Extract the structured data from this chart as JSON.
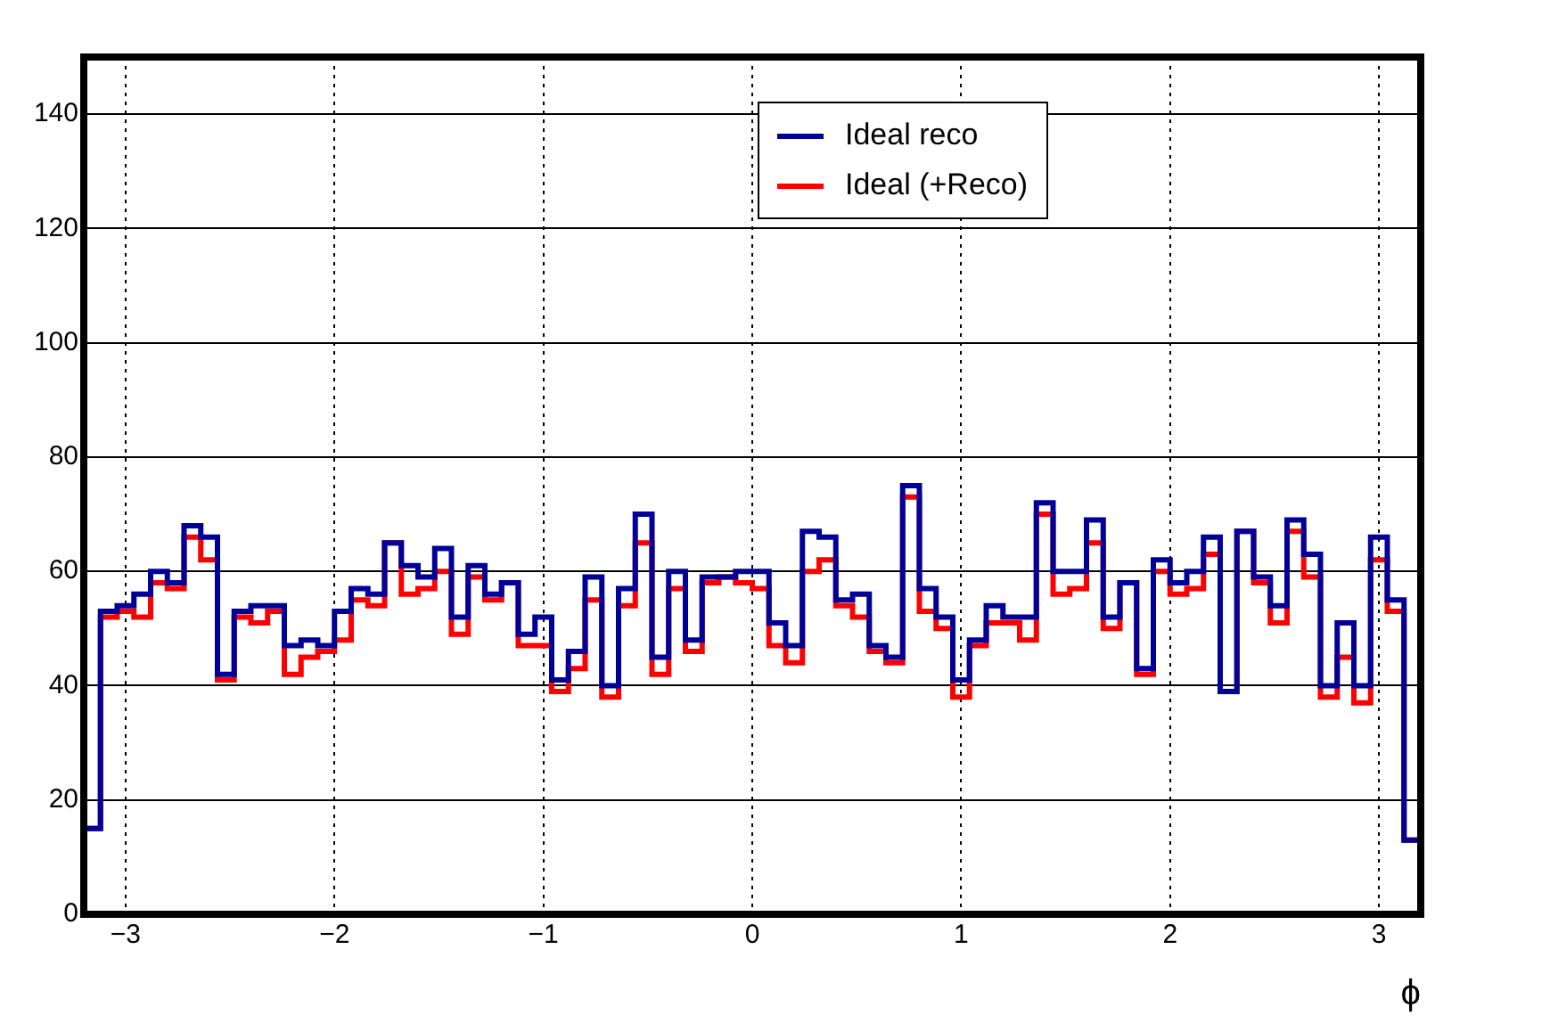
{
  "chart_data": {
    "type": "histogram",
    "xlabel": "ϕ",
    "bins": [
      -3.2,
      -3.12,
      -3.04,
      -2.96,
      -2.88,
      -2.8,
      -2.72,
      -2.64,
      -2.56,
      -2.48,
      -2.4,
      -2.32,
      -2.24,
      -2.16,
      -2.08,
      -2,
      -1.92,
      -1.84,
      -1.76,
      -1.68,
      -1.6,
      -1.52,
      -1.44,
      -1.36,
      -1.28,
      -1.2,
      -1.12,
      -1.04,
      -0.96,
      -0.88,
      -0.8,
      -0.72,
      -0.64,
      -0.56,
      -0.48,
      -0.4,
      -0.32,
      -0.24,
      -0.16,
      -0.08,
      0,
      0.08,
      0.16,
      0.24,
      0.32,
      0.4,
      0.48,
      0.56,
      0.64,
      0.72,
      0.8,
      0.88,
      0.96,
      1.04,
      1.12,
      1.2,
      1.28,
      1.36,
      1.44,
      1.52,
      1.6,
      1.68,
      1.76,
      1.84,
      1.92,
      2,
      2.08,
      2.16,
      2.24,
      2.32,
      2.4,
      2.48,
      2.56,
      2.64,
      2.72,
      2.8,
      2.88,
      2.96,
      3.04,
      3.12,
      3.2
    ],
    "series": [
      {
        "name": "Ideal reco",
        "color": "#000099",
        "values": [
          15,
          53,
          54,
          56,
          60,
          58,
          68,
          66,
          42,
          53,
          54,
          54,
          47,
          48,
          47,
          53,
          57,
          56,
          65,
          61,
          59,
          64,
          52,
          61,
          56,
          58,
          49,
          52,
          41,
          46,
          59,
          40,
          57,
          70,
          45,
          60,
          48,
          59,
          59,
          60,
          60,
          51,
          47,
          67,
          66,
          55,
          56,
          47,
          45,
          75,
          57,
          52,
          41,
          48,
          54,
          52,
          52,
          72,
          60,
          60,
          69,
          52,
          58,
          43,
          62,
          58,
          60,
          66,
          39,
          67,
          59,
          54,
          69,
          63,
          40,
          51,
          40,
          66,
          55,
          13
        ]
      },
      {
        "name": "Ideal (+Reco)",
        "color": "#ff0000",
        "values": [
          15,
          52,
          53,
          52,
          58,
          57,
          66,
          62,
          41,
          52,
          51,
          53,
          42,
          45,
          46,
          48,
          55,
          54,
          65,
          56,
          57,
          60,
          49,
          59,
          55,
          58,
          47,
          47,
          39,
          43,
          55,
          38,
          54,
          65,
          42,
          57,
          46,
          58,
          59,
          58,
          57,
          47,
          44,
          60,
          62,
          54,
          52,
          46,
          44,
          73,
          53,
          50,
          38,
          47,
          51,
          51,
          48,
          70,
          56,
          57,
          65,
          50,
          58,
          42,
          60,
          56,
          57,
          63,
          39,
          67,
          58,
          51,
          67,
          59,
          38,
          45,
          37,
          62,
          53,
          13
        ]
      }
    ],
    "xlim": [
      -3.2,
      3.2
    ],
    "ylim": [
      0,
      150
    ],
    "xticks": [
      -3,
      -2,
      -1,
      0,
      1,
      2,
      3
    ],
    "yticks": [
      0,
      20,
      40,
      60,
      80,
      100,
      120,
      140
    ],
    "grid": true,
    "legend": "top"
  }
}
